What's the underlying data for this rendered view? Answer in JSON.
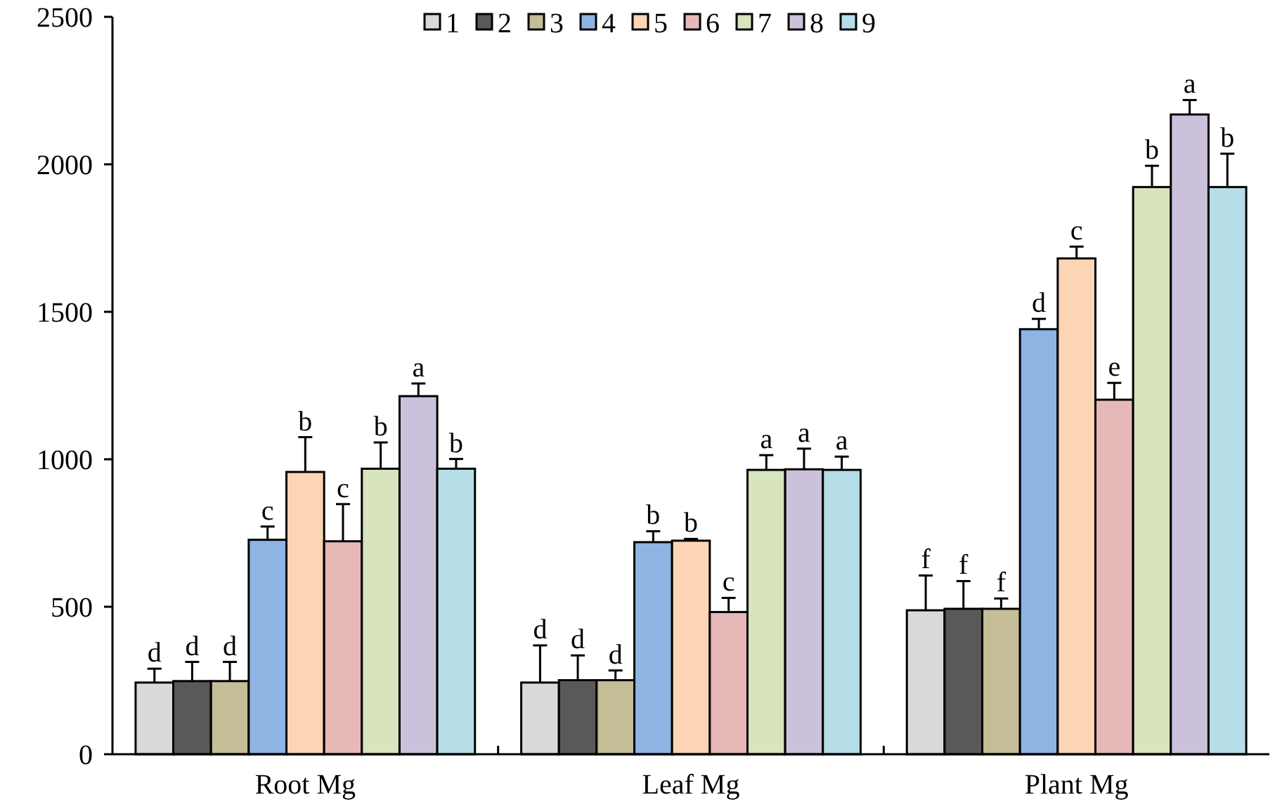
{
  "chart_data": {
    "type": "bar",
    "categories": [
      "Root Mg",
      "Leaf Mg",
      "Plant Mg"
    ],
    "ylim": [
      0,
      2500
    ],
    "yticks": [
      0,
      500,
      1000,
      1500,
      2000,
      2500
    ],
    "legend": "top",
    "grid": false,
    "series": [
      {
        "name": "1",
        "color": "#d9d9d9",
        "values": [
          243,
          243,
          488
        ],
        "errors": [
          47,
          126,
          118
        ],
        "value_labels": [
          "d",
          "d",
          "f"
        ]
      },
      {
        "name": "2",
        "color": "#595959",
        "values": [
          248,
          251,
          493
        ],
        "errors": [
          65,
          84,
          94
        ],
        "value_labels": [
          "d",
          "d",
          "f"
        ]
      },
      {
        "name": "3",
        "color": "#c4bd97",
        "values": [
          248,
          251,
          493
        ],
        "errors": [
          65,
          33,
          35
        ],
        "value_labels": [
          "d",
          "d",
          "f"
        ]
      },
      {
        "name": "4",
        "color": "#8eb4e3",
        "values": [
          727,
          719,
          1441
        ],
        "errors": [
          45,
          37,
          35
        ],
        "value_labels": [
          "c",
          "b",
          "d"
        ]
      },
      {
        "name": "5",
        "color": "#fcd5b5",
        "values": [
          957,
          724,
          1681
        ],
        "errors": [
          118,
          6,
          40
        ],
        "value_labels": [
          "b",
          "b",
          "c"
        ]
      },
      {
        "name": "6",
        "color": "#e6b9b8",
        "values": [
          722,
          482,
          1202
        ],
        "errors": [
          126,
          48,
          57
        ],
        "value_labels": [
          "c",
          "c",
          "e"
        ]
      },
      {
        "name": "7",
        "color": "#d7e4bd",
        "values": [
          968,
          964,
          1923
        ],
        "errors": [
          89,
          50,
          72
        ],
        "value_labels": [
          "b",
          "a",
          "b"
        ]
      },
      {
        "name": "8",
        "color": "#ccc1da",
        "values": [
          1214,
          966,
          2169
        ],
        "errors": [
          43,
          70,
          49
        ],
        "value_labels": [
          "a",
          "a",
          "a"
        ]
      },
      {
        "name": "9",
        "color": "#b7dee8",
        "values": [
          968,
          964,
          1923
        ],
        "errors": [
          33,
          45,
          113
        ],
        "value_labels": [
          "b",
          "a",
          "b"
        ]
      }
    ]
  }
}
